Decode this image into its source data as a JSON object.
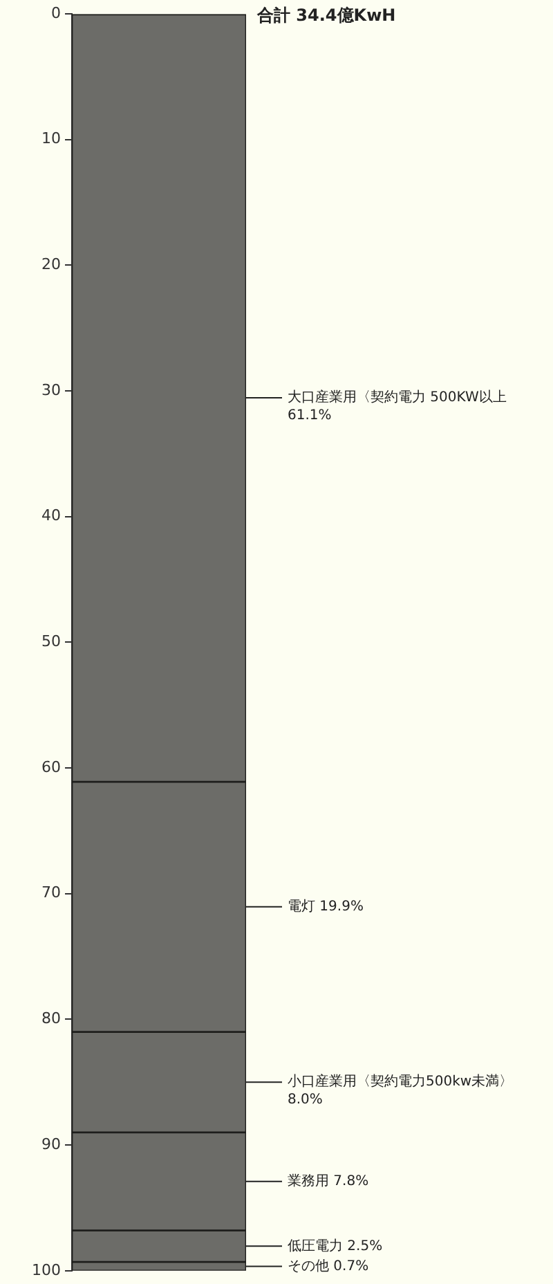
{
  "chart_data": {
    "type": "bar",
    "stacked": true,
    "title": "合計 34.4億KwH",
    "categories": [
      null
    ],
    "ylim": [
      100,
      0
    ],
    "yticks": [
      0,
      10,
      20,
      30,
      40,
      50,
      60,
      70,
      80,
      90,
      100
    ],
    "grid": false,
    "legend": false,
    "series": [
      {
        "name": "大口産業用〈契約電力 500KW以上",
        "color": "#6c6c68",
        "values": [
          61.1
        ],
        "value_labels": [
          "61.1%"
        ]
      },
      {
        "name": "電灯",
        "color": "#6c6c68",
        "values": [
          19.9
        ],
        "value_labels": [
          "19.9%"
        ]
      },
      {
        "name": "小口産業用〈契約電力500kw未満〉",
        "color": "#6c6c68",
        "values": [
          8.0
        ],
        "value_labels": [
          "8.0%"
        ]
      },
      {
        "name": "業務用",
        "color": "#6c6c68",
        "values": [
          7.8
        ],
        "value_labels": [
          "7.8%"
        ]
      },
      {
        "name": "低圧電力",
        "color": "#6c6c68",
        "values": [
          2.5
        ],
        "value_labels": [
          "2.5%"
        ]
      },
      {
        "name": "その他",
        "color": "#6c6c68",
        "values": [
          0.7
        ],
        "value_labels": [
          "0.7%"
        ]
      }
    ]
  }
}
